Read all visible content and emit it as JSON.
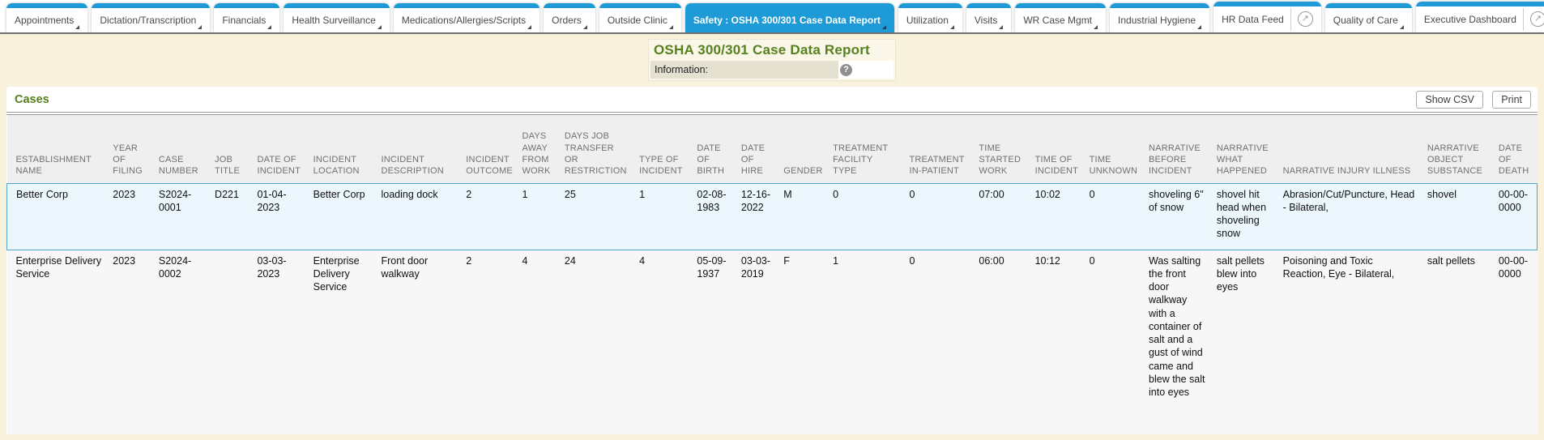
{
  "tab_bar": {
    "tabs": [
      {
        "label": "Appointments",
        "active": false,
        "dropdown": true,
        "external": false
      },
      {
        "label": "Dictation/Transcription",
        "active": false,
        "dropdown": true,
        "external": false
      },
      {
        "label": "Financials",
        "active": false,
        "dropdown": true,
        "external": false
      },
      {
        "label": "Health Surveillance",
        "active": false,
        "dropdown": true,
        "external": false
      },
      {
        "label": "Medications/Allergies/Scripts",
        "active": false,
        "dropdown": true,
        "external": false
      },
      {
        "label": "Orders",
        "active": false,
        "dropdown": true,
        "external": false
      },
      {
        "label": "Outside Clinic",
        "active": false,
        "dropdown": true,
        "external": false
      },
      {
        "label": "Safety : OSHA 300/301 Case Data Report",
        "active": true,
        "dropdown": true,
        "external": false
      },
      {
        "label": "Utilization",
        "active": false,
        "dropdown": true,
        "external": false
      },
      {
        "label": "Visits",
        "active": false,
        "dropdown": true,
        "external": false
      },
      {
        "label": "WR Case Mgmt",
        "active": false,
        "dropdown": true,
        "external": false
      },
      {
        "label": "Industrial Hygiene",
        "active": false,
        "dropdown": true,
        "external": false
      },
      {
        "label": "HR Data Feed",
        "active": false,
        "dropdown": false,
        "external": true
      },
      {
        "label": "Quality of Care",
        "active": false,
        "dropdown": true,
        "external": false
      },
      {
        "label": "Executive Dashboard",
        "active": false,
        "dropdown": false,
        "external": true
      },
      {
        "label": "",
        "active": false,
        "dropdown": false,
        "external": true,
        "cutoff": true
      }
    ]
  },
  "header": {
    "title": "OSHA 300/301 Case Data Report",
    "information_label": "Information:"
  },
  "icons": {
    "external_link": "↗",
    "help": "?"
  },
  "cases": {
    "title": "Cases",
    "show_csv_label": "Show CSV",
    "print_label": "Print"
  },
  "table": {
    "columns": [
      "ESTABLISHMENT NAME",
      "YEAR OF FILING",
      "CASE NUMBER",
      "JOB TITLE",
      "DATE OF INCIDENT",
      "INCIDENT LOCATION",
      "INCIDENT DESCRIPTION",
      "INCIDENT OUTCOME",
      "DAYS AWAY FROM WORK",
      "DAYS JOB TRANSFER OR RESTRICTION",
      "TYPE OF INCIDENT",
      "DATE OF BIRTH",
      "DATE OF HIRE",
      "GENDER",
      "TREATMENT FACILITY TYPE",
      "TREATMENT IN-PATIENT",
      "TIME STARTED WORK",
      "TIME OF INCIDENT",
      "TIME UNKNOWN",
      "NARRATIVE BEFORE INCIDENT",
      "NARRATIVE WHAT HAPPENED",
      "NARRATIVE INJURY ILLNESS",
      "NARRATIVE OBJECT SUBSTANCE",
      "DATE OF DEATH"
    ],
    "rows": [
      {
        "selected": true,
        "cells": [
          "Better Corp",
          "2023",
          "S2024-0001",
          "D221",
          "01-04-2023",
          "Better Corp",
          "loading dock",
          "2",
          "1",
          "25",
          "1",
          "02-08-1983",
          "12-16-2022",
          "M",
          "0",
          "0",
          "07:00",
          "10:02",
          "0",
          "shoveling 6\" of snow",
          "shovel hit head when shoveling snow",
          "Abrasion/Cut/Puncture, Head - Bilateral,",
          "shovel",
          "00-00-0000"
        ]
      },
      {
        "selected": false,
        "cells": [
          "Enterprise Delivery Service",
          "2023",
          "S2024-0002",
          "",
          "03-03-2023",
          "Enterprise Delivery Service",
          "Front door walkway",
          "2",
          "4",
          "24",
          "4",
          "05-09-1937",
          "03-03-2019",
          "F",
          "1",
          "0",
          "06:00",
          "10:12",
          "0",
          "Was salting the front door walkway with a container of salt and a gust of wind came and blew the salt into eyes",
          "salt pellets blew into eyes",
          "Poisoning and Toxic Reaction, Eye - Bilateral,",
          "salt pellets",
          "00-00-0000"
        ]
      }
    ]
  },
  "colors": {
    "tab_accent_blue": "#1E9AD6",
    "title_green": "#55811E",
    "page_cream": "#F8F2DC",
    "info_bar_beige": "#E5E1D1",
    "header_row_gray": "#EFEFEF",
    "selected_row_bg": "#EBF6FD",
    "selected_row_border": "#56A6D4",
    "alt_row_bg": "#F7F7F7"
  }
}
